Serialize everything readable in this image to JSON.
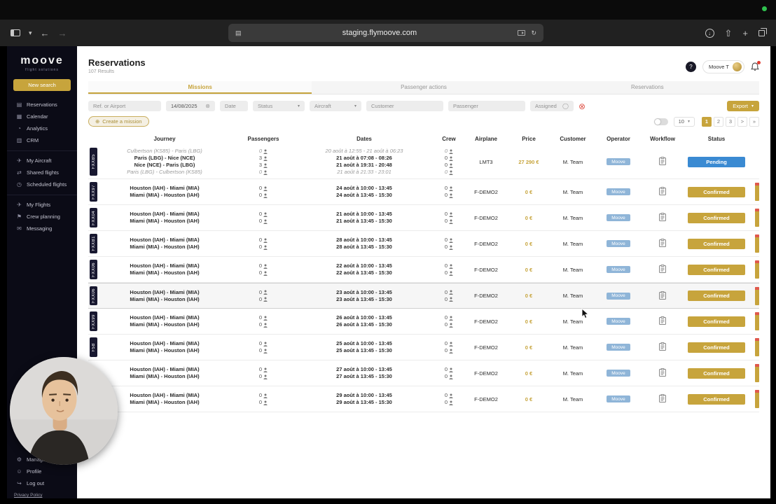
{
  "colors": {
    "accent": "#c7a43c",
    "pending": "#3a8ad2",
    "confirmed": "#c7a43c",
    "operator_badge": "#8fb5d8",
    "danger": "#e0584d"
  },
  "icons": {
    "reservations": "▤",
    "calendar": "▦",
    "analytics": "◔",
    "crm": "▥",
    "aircraft": "✈",
    "shared-flights": "⇄",
    "scheduled-flights": "◷",
    "flights": "✈",
    "crew-planning": "⚑",
    "messaging": "✉",
    "manage": "⚙",
    "profile": "☺",
    "logout": "↪",
    "caret-down": "▾",
    "clear": "⊗",
    "add": "⊕",
    "assigned-user": "◯",
    "back": "←",
    "forward": "→",
    "reload": "↻",
    "plus": "+",
    "page-info": "▤",
    "share": "⇧",
    "download-arrow": "↓",
    "help": "?"
  },
  "browser": {
    "url": "staging.flymoove.com"
  },
  "sidebar": {
    "logo": "moove",
    "tagline": "flight solutions",
    "new_search": "New search",
    "sections": [
      {
        "items": [
          {
            "label": "Reservations",
            "icon": "reservations"
          },
          {
            "label": "Calendar",
            "icon": "calendar"
          },
          {
            "label": "Analytics",
            "icon": "analytics"
          },
          {
            "label": "CRM",
            "icon": "crm"
          }
        ]
      },
      {
        "items": [
          {
            "label": "My Aircraft",
            "icon": "aircraft"
          },
          {
            "label": "Shared flights",
            "icon": "shared-flights"
          },
          {
            "label": "Scheduled flights",
            "icon": "scheduled-flights"
          }
        ]
      },
      {
        "items": [
          {
            "label": "My Flights",
            "icon": "flights"
          },
          {
            "label": "Crew planning",
            "icon": "crew-planning"
          },
          {
            "label": "Messaging",
            "icon": "messaging"
          }
        ]
      }
    ],
    "bottom": [
      {
        "label": "Manage...",
        "icon": "manage"
      },
      {
        "label": "Profile",
        "icon": "profile"
      },
      {
        "label": "Log out",
        "icon": "logout"
      }
    ],
    "privacy": "Privacy Policy"
  },
  "header": {
    "title": "Reservations",
    "results": "107 Results",
    "user": "Moove T"
  },
  "tabs": [
    {
      "label": "Missions",
      "active": true
    },
    {
      "label": "Passenger actions",
      "active": false
    },
    {
      "label": "Reservations",
      "active": false
    }
  ],
  "filters": {
    "fields": [
      {
        "name": "ref",
        "type": "text",
        "placeholder": "Ref. or Airport"
      },
      {
        "name": "date-from",
        "type": "value",
        "value": "14/08/2025",
        "clearable": true
      },
      {
        "name": "date-to",
        "type": "text",
        "placeholder": "Date"
      },
      {
        "name": "status",
        "type": "select",
        "value": "Status"
      },
      {
        "name": "aircraft",
        "type": "select",
        "value": "Aircraft"
      },
      {
        "name": "customer",
        "type": "text",
        "placeholder": "Customer"
      },
      {
        "name": "passenger",
        "type": "text",
        "placeholder": "Passenger"
      },
      {
        "name": "assigned",
        "type": "assigned",
        "value": "Assigned"
      }
    ],
    "export_label": "Export"
  },
  "toolbar": {
    "create_label": "Create a mission"
  },
  "pagination": {
    "page_size": "10",
    "pages": [
      "1",
      "2",
      "3"
    ],
    "active": "1",
    "next_label": ">",
    "last_label": "»"
  },
  "table": {
    "columns": [
      "Journey",
      "Passengers",
      "Dates",
      "Crew",
      "Airplane",
      "Price",
      "Customer",
      "Operator",
      "Workflow",
      "Status"
    ],
    "rows": [
      {
        "ref": "FXXB5",
        "legs": [
          {
            "journey": "Culbertson (KS85) - Paris (LBG)",
            "pax": "0",
            "dates": "20 août à 12:55 - 21 août à 06:23",
            "crew": "0",
            "ghost": true
          },
          {
            "journey": "Paris (LBG) - Nice (NCE)",
            "pax": "3",
            "dates": "21 août à 07:08 - 08:26",
            "crew": "0"
          },
          {
            "journey": "Nice (NCE) - Paris (LBG)",
            "pax": "3",
            "dates": "21 août à 19:31 - 20:48",
            "crew": "0"
          },
          {
            "journey": "Paris (LBG) - Culbertson (KS85)",
            "pax": "0",
            "dates": "21 août à 21:33 - 23:01",
            "crew": "0",
            "ghost": true
          }
        ],
        "airplane": "LMT3",
        "price": "27 290 €",
        "customer": "M. Team",
        "operator": "Moove",
        "status": "Pending",
        "status_type": "pending",
        "edge_bar": false
      },
      {
        "ref": "FXX97",
        "legs": [
          {
            "journey": "Houston (IAH) - Miami (MIA)",
            "pax": "0",
            "dates": "24 août à 10:00 - 13:45",
            "crew": "0"
          },
          {
            "journey": "Miami (MIA) - Houston (IAH)",
            "pax": "0",
            "dates": "24 août à 13:45 - 15:30",
            "crew": "0"
          }
        ],
        "airplane": "F-DEMO2",
        "price": "0 €",
        "customer": "M. Team",
        "operator": "Moove",
        "status": "Confirmed",
        "status_type": "confirmed",
        "edge_bar": true
      },
      {
        "ref": "FXX04",
        "legs": [
          {
            "journey": "Houston (IAH) - Miami (MIA)",
            "pax": "0",
            "dates": "21 août à 10:00 - 13:45",
            "crew": "0"
          },
          {
            "journey": "Miami (MIA) - Houston (IAH)",
            "pax": "0",
            "dates": "21 août à 13:45 - 15:30",
            "crew": "0"
          }
        ],
        "airplane": "F-DEMO2",
        "price": "0 €",
        "customer": "M. Team",
        "operator": "Moove",
        "status": "Confirmed",
        "status_type": "confirmed",
        "edge_bar": true
      },
      {
        "ref": "FXXB1",
        "legs": [
          {
            "journey": "Houston (IAH) - Miami (MIA)",
            "pax": "0",
            "dates": "28 août à 10:00 - 13:45",
            "crew": "0"
          },
          {
            "journey": "Miami (MIA) - Houston (IAH)",
            "pax": "0",
            "dates": "28 août à 13:45 - 15:30",
            "crew": "0"
          }
        ],
        "airplane": "F-DEMO2",
        "price": "0 €",
        "customer": "M. Team",
        "operator": "Moove",
        "status": "Confirmed",
        "status_type": "confirmed",
        "edge_bar": true
      },
      {
        "ref": "FXX06",
        "legs": [
          {
            "journey": "Houston (IAH) - Miami (MIA)",
            "pax": "0",
            "dates": "22 août à 10:00 - 13:45",
            "crew": "0"
          },
          {
            "journey": "Miami (MIA) - Houston (IAH)",
            "pax": "0",
            "dates": "22 août à 13:45 - 15:30",
            "crew": "0"
          }
        ],
        "airplane": "F-DEMO2",
        "price": "0 €",
        "customer": "M. Team",
        "operator": "Moove",
        "status": "Confirmed",
        "status_type": "confirmed",
        "edge_bar": true
      },
      {
        "ref": "FXX06",
        "hovered": true,
        "legs": [
          {
            "journey": "Houston (IAH) - Miami (MIA)",
            "pax": "0",
            "dates": "23 août à 10:00 - 13:45",
            "crew": "0"
          },
          {
            "journey": "Miami (MIA) - Houston (IAH)",
            "pax": "0",
            "dates": "23 août à 13:45 - 15:30",
            "crew": "0"
          }
        ],
        "airplane": "F-DEMO2",
        "price": "0 €",
        "customer": "M. Team",
        "operator": "Moove",
        "status": "Confirmed",
        "status_type": "confirmed",
        "edge_bar": true
      },
      {
        "ref": "FXX99",
        "legs": [
          {
            "journey": "Houston (IAH) - Miami (MIA)",
            "pax": "0",
            "dates": "26 août à 10:00 - 13:45",
            "crew": "0"
          },
          {
            "journey": "Miami (MIA) - Houston (IAH)",
            "pax": "0",
            "dates": "26 août à 13:45 - 15:30",
            "crew": "0"
          }
        ],
        "airplane": "F-DEMO2",
        "price": "0 €",
        "customer": "M. Team",
        "operator": "Moove",
        "status": "Confirmed",
        "status_type": "confirmed",
        "edge_bar": true
      },
      {
        "ref": "F5B",
        "legs": [
          {
            "journey": "Houston (IAH) - Miami (MIA)",
            "pax": "0",
            "dates": "25 août à 10:00 - 13:45",
            "crew": "0"
          },
          {
            "journey": "Miami (MIA) - Houston (IAH)",
            "pax": "0",
            "dates": "25 août à 13:45 - 15:30",
            "crew": "0"
          }
        ],
        "airplane": "F-DEMO2",
        "price": "0 €",
        "customer": "M. Team",
        "operator": "Moove",
        "status": "Confirmed",
        "status_type": "confirmed",
        "edge_bar": true
      },
      {
        "ref": "",
        "legs": [
          {
            "journey": "Houston (IAH) - Miami (MIA)",
            "pax": "0",
            "dates": "27 août à 10:00 - 13:45",
            "crew": "0"
          },
          {
            "journey": "Miami (MIA) - Houston (IAH)",
            "pax": "0",
            "dates": "27 août à 13:45 - 15:30",
            "crew": "0"
          }
        ],
        "airplane": "F-DEMO2",
        "price": "0 €",
        "customer": "M. Team",
        "operator": "Moove",
        "status": "Confirmed",
        "status_type": "confirmed",
        "edge_bar": true
      },
      {
        "ref": "",
        "legs": [
          {
            "journey": "Houston (IAH) - Miami (MIA)",
            "pax": "0",
            "dates": "29 août à 10:00 - 13:45",
            "crew": "0"
          },
          {
            "journey": "Miami (MIA) - Houston (IAH)",
            "pax": "0",
            "dates": "29 août à 13:45 - 15:30",
            "crew": "0"
          }
        ],
        "airplane": "F-DEMO2",
        "price": "0 €",
        "customer": "M. Team",
        "operator": "Moove",
        "status": "Confirmed",
        "status_type": "confirmed",
        "edge_bar": true
      }
    ]
  }
}
